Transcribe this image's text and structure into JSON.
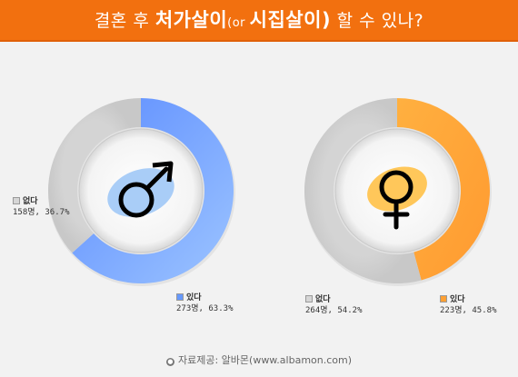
{
  "header": {
    "part1": "결혼 후 ",
    "part2": "처가살이",
    "part3": "(or ",
    "part4": "시집살이",
    "part5": ")",
    "part6": " 할 수 있나?"
  },
  "chart_data": [
    {
      "type": "pie",
      "group": "male",
      "series": [
        {
          "name": "있다",
          "count": "273명",
          "percent": "63.3%",
          "value": 63.3,
          "color": "#6699ff"
        },
        {
          "name": "없다",
          "count": "158명",
          "percent": "36.7%",
          "value": 36.7,
          "color": "#d6d6d6"
        }
      ]
    },
    {
      "type": "pie",
      "group": "female",
      "series": [
        {
          "name": "있다",
          "count": "223명",
          "percent": "45.8%",
          "value": 45.8,
          "color": "#ffa033"
        },
        {
          "name": "없다",
          "count": "264명",
          "percent": "54.2%",
          "value": 54.2,
          "color": "#d6d6d6"
        }
      ]
    }
  ],
  "icons": {
    "male": "male-symbol-icon",
    "female": "female-symbol-icon"
  },
  "source": "자료제공: 알바몬(www.albamon.com)"
}
